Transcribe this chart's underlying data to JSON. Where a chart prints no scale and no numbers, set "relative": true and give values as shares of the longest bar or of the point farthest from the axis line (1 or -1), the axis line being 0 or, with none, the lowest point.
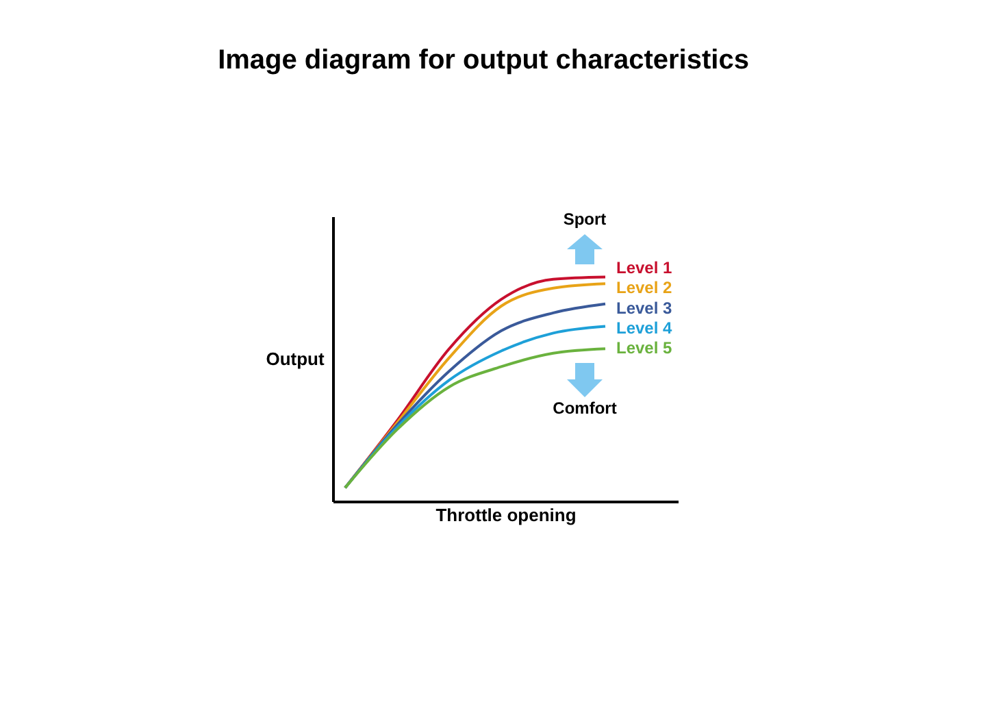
{
  "chart_data": {
    "type": "line",
    "title": "Image diagram for output characteristics",
    "xlabel": "Throttle opening",
    "ylabel": "Output",
    "annotations": [
      "Sport",
      "Comfort"
    ],
    "relative": true,
    "legend": false,
    "categories": [
      null,
      null,
      null,
      null,
      null,
      null
    ],
    "series": [
      {
        "name": "Level 1",
        "color": "#c8102e",
        "values": [
          0.06,
          0.36,
          0.68,
          0.9,
          0.99,
          1
        ]
      },
      {
        "name": "Level 2",
        "color": "#e8a317",
        "values": [
          0.06,
          0.35,
          0.64,
          0.87,
          0.95,
          0.97
        ]
      },
      {
        "name": "Level 3",
        "color": "#3a5a9a",
        "values": [
          0.06,
          0.34,
          0.58,
          0.76,
          0.84,
          0.88
        ]
      },
      {
        "name": "Level 4",
        "color": "#1ea0d8",
        "values": [
          0.06,
          0.33,
          0.54,
          0.67,
          0.75,
          0.78
        ]
      },
      {
        "name": "Level 5",
        "color": "#6ab23e",
        "values": [
          0.06,
          0.32,
          0.51,
          0.6,
          0.66,
          0.68
        ]
      }
    ]
  }
}
